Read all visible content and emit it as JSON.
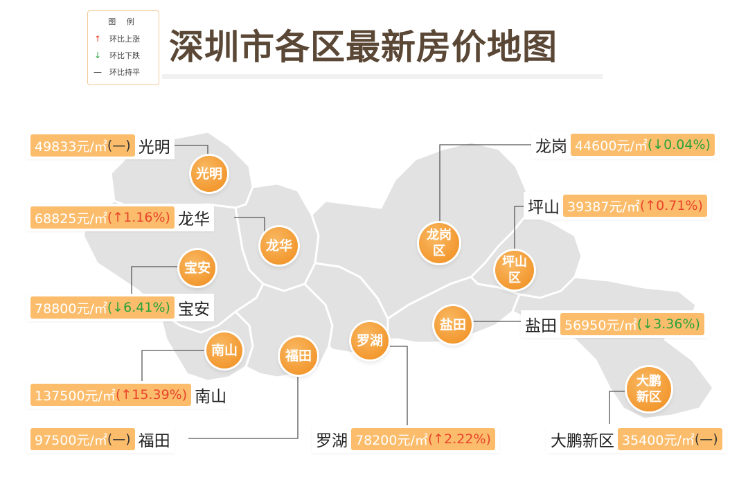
{
  "title": "深圳市各区最新房价地图",
  "legend": {
    "title": "图 例",
    "items": [
      {
        "symbol": "↑",
        "label": "环比上涨",
        "color": "#e8432a"
      },
      {
        "symbol": "↓",
        "label": "环比下跌",
        "color": "#27a33a"
      },
      {
        "symbol": "—",
        "label": "环比持平",
        "color": "#333333"
      }
    ]
  },
  "colors": {
    "accent": "#f39a2b",
    "price_box": "#fbbd6c",
    "up": "#e8432a",
    "down": "#27a33a",
    "map_fill": "#e2e2e2",
    "border": "#ffffff"
  },
  "districts": [
    {
      "key": "guangming",
      "map_name": "光明",
      "label": "光明",
      "price": "49833元/㎡",
      "change": "(—)",
      "trend": "flat"
    },
    {
      "key": "longhua",
      "map_name": "龙华",
      "label": "龙华",
      "price": "68825元/㎡",
      "change": "(↑1.16%)",
      "trend": "up"
    },
    {
      "key": "baoan",
      "map_name": "宝安",
      "label": "宝安",
      "price": "78800元/㎡",
      "change": "(↓6.41%)",
      "trend": "down"
    },
    {
      "key": "nanshan",
      "map_name": "南山",
      "label": "南山",
      "price": "137500元/㎡",
      "change": "(↑15.39%)",
      "trend": "up"
    },
    {
      "key": "futian",
      "map_name": "福田",
      "label": "福田",
      "price": "97500元/㎡",
      "change": "(—)",
      "trend": "flat"
    },
    {
      "key": "luohu",
      "map_name": "罗湖",
      "label": "罗湖",
      "price": "78200元/㎡",
      "change": "(↑2.22%)",
      "trend": "up"
    },
    {
      "key": "longgang",
      "map_name": "龙岗\n区",
      "label": "龙岗",
      "price": "44600元/㎡",
      "change": "(↓0.04%)",
      "trend": "down"
    },
    {
      "key": "pingshan",
      "map_name": "坪山\n区",
      "label": "坪山",
      "price": "39387元/㎡",
      "change": "(↑0.71%)",
      "trend": "up"
    },
    {
      "key": "yantian",
      "map_name": "盐田",
      "label": "盐田",
      "price": "56950元/㎡",
      "change": "(↓3.36%)",
      "trend": "down"
    },
    {
      "key": "dapeng",
      "map_name": "大鹏\n新区",
      "label": "大鹏新区",
      "price": "35400元/㎡",
      "change": "(—)",
      "trend": "flat"
    }
  ]
}
